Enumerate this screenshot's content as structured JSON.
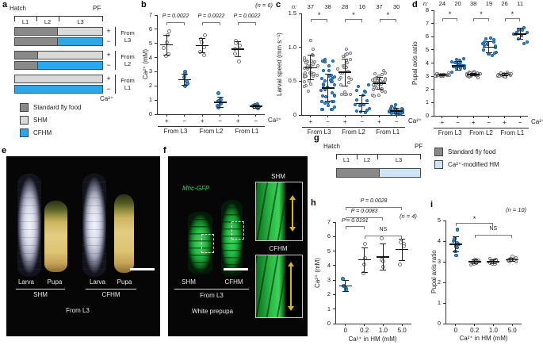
{
  "panels": {
    "a": "a",
    "b": "b",
    "c": "c",
    "d": "d",
    "e": "e",
    "f": "f",
    "g": "g",
    "h": "h",
    "i": "i"
  },
  "foods": {
    "standard": "#898989",
    "shm": "#d9d9d9",
    "cfhm": "#2ea7e6",
    "hm": "#cfe4f6"
  },
  "colors": {
    "point_filled": "#3b8ccc",
    "point_filled_border": "#1b5f9d",
    "point_open_fill": "#fcfcfc",
    "point_open_border": "#787878",
    "gfp_green": "#3bd35f",
    "arrow_yellow": "#d8b41c",
    "accent_blue": "#2ea7e6"
  },
  "panel_a": {
    "timeline": {
      "start": "Hatch",
      "end": "PF",
      "stages": [
        "L1",
        "L2",
        "L3"
      ]
    },
    "rows": [
      {
        "sign": "+",
        "segments": [
          {
            "food": "standard",
            "pct": 48
          },
          {
            "food": "shm",
            "pct": 52
          }
        ]
      },
      {
        "sign": "−",
        "segments": [
          {
            "food": "standard",
            "pct": 48
          },
          {
            "food": "cfhm",
            "pct": 52
          }
        ]
      },
      {
        "sign": "+",
        "segments": [
          {
            "food": "standard",
            "pct": 25
          },
          {
            "food": "shm",
            "pct": 75
          }
        ]
      },
      {
        "sign": "−",
        "segments": [
          {
            "food": "standard",
            "pct": 25
          },
          {
            "food": "cfhm",
            "pct": 75
          }
        ]
      },
      {
        "sign": "+",
        "segments": [
          {
            "food": "shm",
            "pct": 100
          }
        ]
      },
      {
        "sign": "−",
        "segments": [
          {
            "food": "cfhm",
            "pct": 100
          }
        ]
      }
    ],
    "pairs": [
      "From L3",
      "From L2",
      "From L1"
    ],
    "ca_label": "Ca²⁺",
    "legend": [
      {
        "food": "standard",
        "label": "Standard fly food"
      },
      {
        "food": "shm",
        "label": "SHM"
      },
      {
        "food": "cfhm",
        "label": "CFHM"
      }
    ]
  },
  "panel_e": {
    "specimen_labels": [
      "Larva",
      "Pupa",
      "Larva",
      "Pupa"
    ],
    "conditions": [
      "SHM",
      "CFHM"
    ],
    "caption": "From L3"
  },
  "panel_f": {
    "marker": "Mhc-GFP",
    "conditions": [
      "SHM",
      "CFHM"
    ],
    "caption": "From L3",
    "stage": "White prepupa",
    "inset_titles": [
      "SHM",
      "CFHM"
    ]
  },
  "panel_g": {
    "timeline": {
      "start": "Hatch",
      "end": "PF",
      "stages": [
        "L1",
        "L2",
        "L3"
      ]
    },
    "bar": [
      {
        "food": "standard",
        "pct": 50
      },
      {
        "food": "hm",
        "pct": 50
      }
    ],
    "legend": [
      {
        "food": "standard",
        "label": "Standard fly food"
      },
      {
        "food": "hm",
        "label": "Ca²⁺-modified HM"
      }
    ]
  },
  "chart_data": [
    {
      "id": "b",
      "type": "scatter",
      "note": "(n = 6)",
      "ylabel": "Ca²⁺ (mM)",
      "ylim": [
        0,
        7
      ],
      "yticks": [
        0,
        1,
        2,
        3,
        4,
        5,
        6,
        7
      ],
      "axis_suffix": "Ca²⁺",
      "groups": [
        {
          "tick": "+",
          "style": "open",
          "values": [
            5.85,
            5.6,
            5.05,
            4.65,
            4.25,
            4.1
          ],
          "mean": 4.9,
          "sd": 0.7
        },
        {
          "tick": "−",
          "style": "filled",
          "values": [
            3.0,
            2.85,
            2.6,
            2.35,
            2.15,
            2.0
          ],
          "mean": 2.45,
          "sd": 0.4
        },
        {
          "tick": "+",
          "style": "open",
          "values": [
            5.55,
            5.3,
            5.05,
            4.75,
            4.4,
            4.2
          ],
          "mean": 4.85,
          "sd": 0.5
        },
        {
          "tick": "−",
          "style": "filled",
          "values": [
            1.5,
            1.05,
            0.9,
            0.75,
            0.6,
            0.45
          ],
          "mean": 0.85,
          "sd": 0.38
        },
        {
          "tick": "+",
          "style": "open",
          "values": [
            5.2,
            5.0,
            4.85,
            4.6,
            4.3,
            3.7
          ],
          "mean": 4.6,
          "sd": 0.55
        },
        {
          "tick": "−",
          "style": "filled",
          "values": [
            0.7,
            0.65,
            0.6,
            0.55,
            0.45,
            0.4
          ],
          "mean": 0.55,
          "sd": 0.12
        }
      ],
      "pairs": [
        {
          "label": "From L3",
          "from": 0,
          "to": 1
        },
        {
          "label": "From L2",
          "from": 2,
          "to": 3
        },
        {
          "label": "From L1",
          "from": 4,
          "to": 5
        }
      ],
      "annotations": [
        {
          "from": 0,
          "to": 1,
          "y": 6.5,
          "label": "P = 0.0022"
        },
        {
          "from": 2,
          "to": 3,
          "y": 6.5,
          "label": "P = 0.0022"
        },
        {
          "from": 4,
          "to": 5,
          "y": 6.5,
          "label": "P = 0.0022"
        }
      ]
    },
    {
      "id": "c",
      "type": "scatter",
      "ylabel": "Larval speed (mm s⁻¹)",
      "ylim": [
        0,
        1.5
      ],
      "yticks": [
        0,
        0.5,
        1,
        1.5
      ],
      "ytick_labels": [
        "0",
        "0.5",
        "1.0",
        "1.5"
      ],
      "axis_suffix": "Ca²⁺",
      "n_row": [
        37,
        38,
        28,
        16,
        37,
        30
      ],
      "n_prefix": "n:",
      "groups": [
        {
          "tick": "+",
          "style": "open",
          "n": 37,
          "mean": 0.7,
          "sd": 0.18,
          "min": 0.3,
          "max": 1.1
        },
        {
          "tick": "−",
          "style": "filled",
          "n": 38,
          "mean": 0.4,
          "sd": 0.2,
          "min": 0.08,
          "max": 0.85
        },
        {
          "tick": "+",
          "style": "open",
          "n": 28,
          "mean": 0.63,
          "sd": 0.2,
          "min": 0.3,
          "max": 1.25
        },
        {
          "tick": "−",
          "style": "filled",
          "n": 16,
          "mean": 0.17,
          "sd": 0.12,
          "min": 0.04,
          "max": 0.45
        },
        {
          "tick": "+",
          "style": "open",
          "n": 37,
          "mean": 0.47,
          "sd": 0.09,
          "min": 0.28,
          "max": 0.66
        },
        {
          "tick": "−",
          "style": "filled",
          "n": 30,
          "mean": 0.06,
          "sd": 0.04,
          "min": 0.01,
          "max": 0.16
        }
      ],
      "pairs": [
        {
          "label": "From L3",
          "from": 0,
          "to": 1
        },
        {
          "label": "From L2",
          "from": 2,
          "to": 3
        },
        {
          "label": "From L1",
          "from": 4,
          "to": 5
        }
      ],
      "annotations": [
        {
          "from": 0,
          "to": 1,
          "y": 1.42,
          "label": "*"
        },
        {
          "from": 2,
          "to": 3,
          "y": 1.42,
          "label": "*"
        },
        {
          "from": 4,
          "to": 5,
          "y": 1.42,
          "label": "*"
        }
      ]
    },
    {
      "id": "d",
      "type": "scatter",
      "ylabel": "Pupal axis ratio",
      "ylim": [
        0,
        8
      ],
      "yticks": [
        0,
        1,
        2,
        3,
        4,
        5,
        6,
        7,
        8
      ],
      "axis_suffix": "Ca²⁺",
      "n_row": [
        24,
        20,
        38,
        19,
        26,
        11
      ],
      "n_prefix": "n:",
      "groups": [
        {
          "tick": "+",
          "style": "open",
          "n": 24,
          "mean": 3.1,
          "sd": 0.07,
          "min": 3.0,
          "max": 3.25
        },
        {
          "tick": "−",
          "style": "filled",
          "n": 20,
          "mean": 3.8,
          "sd": 0.33,
          "min": 3.3,
          "max": 4.45
        },
        {
          "tick": "+",
          "style": "open",
          "n": 38,
          "mean": 3.12,
          "sd": 0.1,
          "min": 2.9,
          "max": 3.45
        },
        {
          "tick": "−",
          "style": "filled",
          "n": 19,
          "mean": 5.2,
          "sd": 0.42,
          "min": 4.3,
          "max": 5.9
        },
        {
          "tick": "+",
          "style": "open",
          "n": 26,
          "mean": 3.1,
          "sd": 0.09,
          "min": 2.9,
          "max": 3.35
        },
        {
          "tick": "−",
          "style": "filled",
          "n": 11,
          "mean": 6.2,
          "sd": 0.42,
          "min": 5.1,
          "max": 6.7
        }
      ],
      "pairs": [
        {
          "label": "From L3",
          "from": 0,
          "to": 1
        },
        {
          "label": "From L2",
          "from": 2,
          "to": 3
        },
        {
          "label": "From L1",
          "from": 4,
          "to": 5
        }
      ],
      "annotations": [
        {
          "from": 0,
          "to": 1,
          "y": 7.4,
          "label": "*"
        },
        {
          "from": 2,
          "to": 3,
          "y": 7.4,
          "label": "*"
        },
        {
          "from": 4,
          "to": 5,
          "y": 7.4,
          "label": "*"
        }
      ]
    },
    {
      "id": "h",
      "type": "scatter",
      "note": "(n = 4)",
      "ylabel": "Ca²⁺ (mM)",
      "xlabel": "Ca²⁺ in HM (mM)",
      "ylim": [
        0,
        7
      ],
      "yticks": [
        0,
        1,
        2,
        3,
        4,
        5,
        6,
        7
      ],
      "groups": [
        {
          "tick": "0",
          "style": "filled",
          "values": [
            3.1,
            2.6,
            2.45,
            2.3
          ],
          "mean": 2.6,
          "sd": 0.37
        },
        {
          "tick": "0.2",
          "style": "open",
          "values": [
            5.5,
            4.5,
            4.1,
            3.5
          ],
          "mean": 4.4,
          "sd": 0.85
        },
        {
          "tick": "1.0",
          "style": "open",
          "values": [
            5.9,
            4.4,
            4.3,
            3.9
          ],
          "mean": 4.6,
          "sd": 0.9
        },
        {
          "tick": "5.0",
          "style": "open",
          "values": [
            5.6,
            5.5,
            5.35,
            4.05
          ],
          "mean": 5.1,
          "sd": 0.73
        }
      ],
      "annotations": [
        {
          "from": 0,
          "to": 3,
          "y": 8.05,
          "label": "P = 0.0028"
        },
        {
          "from": 0,
          "to": 2,
          "y": 7.35,
          "label": "P = 0.0083"
        },
        {
          "from": 0,
          "to": 1,
          "y": 6.7,
          "label": "P = 0.0191"
        },
        {
          "from": 1,
          "to": 3,
          "y": 6.05,
          "label": "NS"
        }
      ]
    },
    {
      "id": "i",
      "type": "scatter",
      "note": "(n = 10)",
      "ylabel": "Pupal axis ratio",
      "xlabel": "Ca²⁺ in HM (mM)",
      "ylim": [
        0,
        5
      ],
      "yticks": [
        0,
        1,
        2,
        3,
        4,
        5
      ],
      "groups": [
        {
          "tick": "0",
          "style": "filled",
          "values": [
            4.55,
            4.15,
            4.1,
            4.0,
            3.9,
            3.85,
            3.75,
            3.7,
            3.5,
            3.3
          ],
          "mean": 3.85,
          "sd": 0.35
        },
        {
          "tick": "0.2",
          "style": "open",
          "values": [
            3.1,
            3.05,
            3.05,
            3.0,
            3.0,
            3.0,
            2.95,
            2.95,
            2.9,
            2.85
          ],
          "mean": 3.0,
          "sd": 0.08
        },
        {
          "tick": "1.0",
          "style": "open",
          "values": [
            3.15,
            3.1,
            3.05,
            3.05,
            3.0,
            3.0,
            3.0,
            2.95,
            2.9,
            2.9
          ],
          "mean": 3.0,
          "sd": 0.09
        },
        {
          "tick": "5.0",
          "style": "open",
          "values": [
            3.25,
            3.2,
            3.15,
            3.1,
            3.1,
            3.1,
            3.05,
            3.05,
            3.0,
            3.0
          ],
          "mean": 3.1,
          "sd": 0.08
        }
      ],
      "annotations": [
        {
          "from": 0,
          "to": 2,
          "y": 4.9,
          "label": "*"
        },
        {
          "from": 1,
          "to": 3,
          "y": 4.3,
          "label": "NS"
        }
      ]
    }
  ]
}
